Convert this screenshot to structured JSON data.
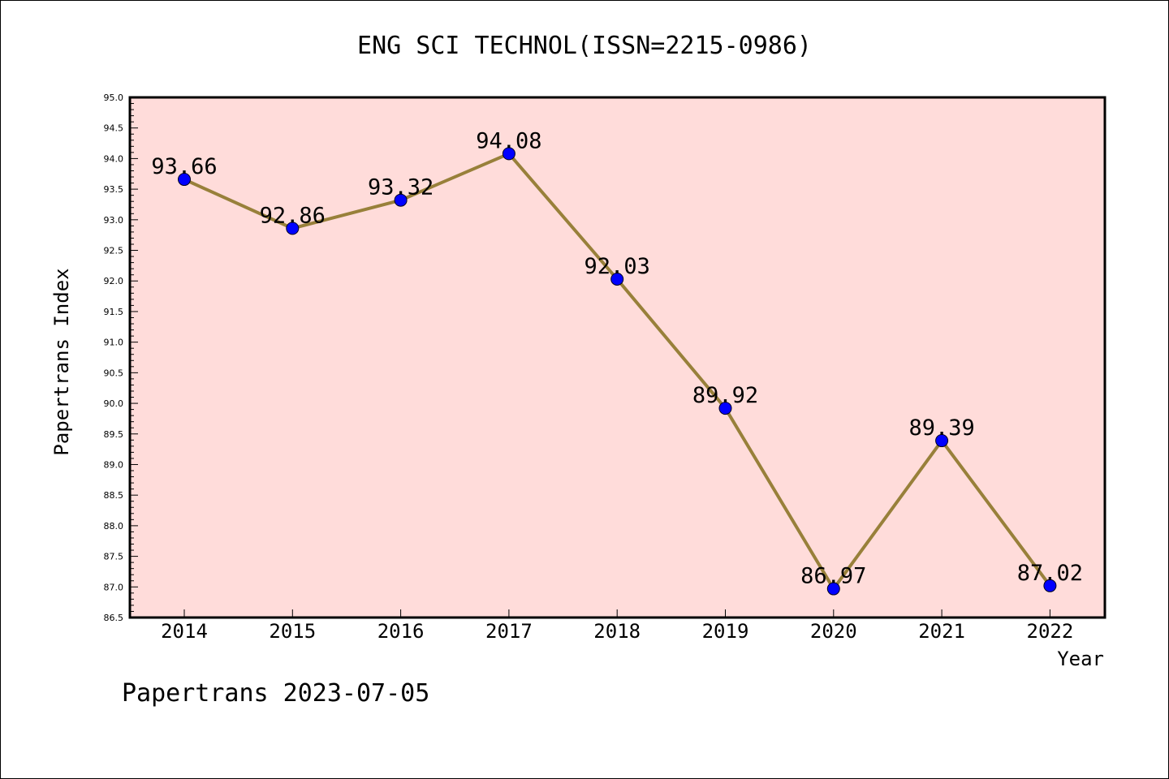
{
  "chart_data": {
    "type": "line",
    "title": "ENG SCI TECHNOL(ISSN=2215-0986)",
    "xlabel": "Year",
    "ylabel": "Papertrans Index",
    "categories": [
      "2014",
      "2015",
      "2016",
      "2017",
      "2018",
      "2019",
      "2020",
      "2021",
      "2022"
    ],
    "values": [
      93.66,
      92.86,
      93.32,
      94.08,
      92.03,
      89.92,
      86.97,
      89.39,
      87.02
    ],
    "value_labels": [
      "93.66",
      "92.86",
      "93.32",
      "94.08",
      "92.03",
      "89.92",
      "86.97",
      "89.39",
      "87.02"
    ],
    "ylim": [
      86.5,
      95.0
    ],
    "yticks": [
      "86.5",
      "87.0",
      "87.5",
      "88.0",
      "88.5",
      "89.0",
      "89.5",
      "90.0",
      "90.5",
      "91.0",
      "91.5",
      "92.0",
      "92.5",
      "93.0",
      "93.5",
      "94.0",
      "94.5",
      "95.0"
    ],
    "grid": false,
    "colors": {
      "plot_background": "#ffdcda",
      "line": "#98803a",
      "marker": "#0000ff"
    }
  },
  "footer": {
    "text": "Papertrans 2023-07-05"
  }
}
